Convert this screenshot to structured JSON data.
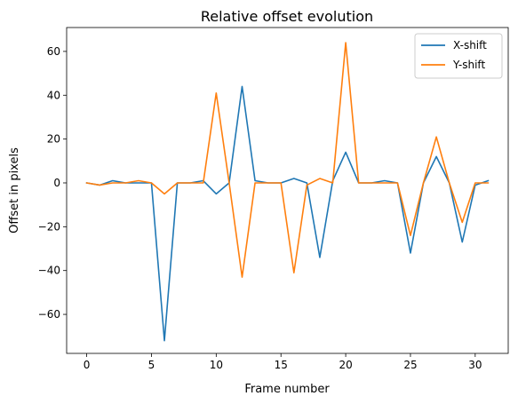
{
  "chart_data": {
    "type": "line",
    "title": "Relative offset evolution",
    "xlabel": "Frame number",
    "ylabel": "Offset in pixels",
    "xlim": [
      -1.55,
      32.55
    ],
    "ylim": [
      -77.8,
      70.9
    ],
    "xticks": [
      0,
      5,
      10,
      15,
      20,
      25,
      30
    ],
    "yticks": [
      -60,
      -40,
      -20,
      0,
      20,
      40,
      60
    ],
    "ytick_labels": [
      "−60",
      "−40",
      "−20",
      "0",
      "20",
      "40",
      "60"
    ],
    "grid": false,
    "legend_position": "top-right",
    "x": [
      0,
      1,
      2,
      3,
      4,
      5,
      6,
      7,
      8,
      9,
      10,
      11,
      12,
      13,
      14,
      15,
      16,
      17,
      18,
      19,
      20,
      21,
      22,
      23,
      24,
      25,
      26,
      27,
      28,
      29,
      30,
      31
    ],
    "series": [
      {
        "name": "X-shift",
        "color": "#1f77b4",
        "values": [
          0,
          -1,
          1,
          0,
          0,
          0,
          -72,
          0,
          0,
          1,
          -5,
          0,
          44,
          1,
          0,
          0,
          2,
          0,
          -34,
          1,
          14,
          0,
          0,
          1,
          0,
          -32,
          0,
          12,
          0,
          -27,
          -1,
          1
        ]
      },
      {
        "name": "Y-shift",
        "color": "#ff7f0e",
        "values": [
          0,
          -1,
          0,
          0,
          1,
          0,
          -5,
          0,
          0,
          0,
          41,
          0,
          -43,
          0,
          0,
          0,
          -41,
          -1,
          2,
          0,
          64,
          0,
          0,
          0,
          0,
          -24,
          0,
          21,
          0,
          -18,
          0,
          0
        ]
      }
    ]
  }
}
